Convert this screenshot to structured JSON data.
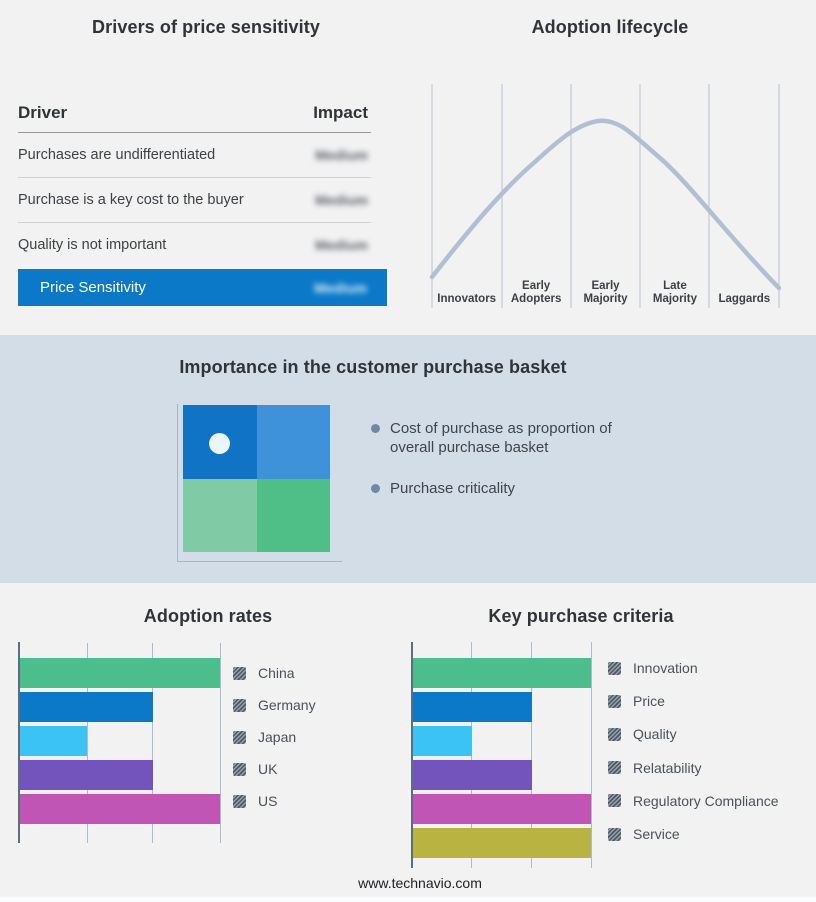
{
  "colors": {
    "accent_blue": "#0b79c8",
    "band_bg": "#d3dde8",
    "page_bg": "#f2f2f3",
    "curve": "#b1bfd3",
    "curve_grid": "#b7c3d3"
  },
  "basket": {
    "title": "Importance in the customer purchase basket",
    "bullets": [
      "Cost of purchase as proportion of overall purchase basket",
      "Purchase criticality"
    ],
    "quadrant_colors": {
      "top_left": "#1173c5",
      "top_right": "#3e92da",
      "bottom_left": "#80cba6",
      "bottom_right": "#50be87"
    }
  },
  "footer": {
    "url": "www.technavio.com"
  },
  "chart_data": [
    {
      "type": "table",
      "title": "Drivers of price sensitivity",
      "columns": [
        "Driver",
        "Impact"
      ],
      "rows": [
        [
          "Purchases are undifferentiated",
          "Medium"
        ],
        [
          "Purchase is a key cost to the buyer",
          "Medium"
        ],
        [
          "Quality is not important",
          "Medium"
        ],
        [
          "Price Sensitivity",
          "Medium"
        ]
      ],
      "note": "Impact values rendered blurred; final row highlighted in blue"
    },
    {
      "type": "line",
      "title": "Adoption lifecycle",
      "categories": [
        "Innovators",
        "Early Adopters",
        "Early Majority",
        "Late Majority",
        "Laggards"
      ],
      "description": "Bell-shaped adoption curve peaking over the Early Majority segment",
      "line_color": "#b1bfd3",
      "grid": "vertical category dividers, no y-axis"
    },
    {
      "type": "bar",
      "title": "Adoption rates",
      "orientation": "horizontal",
      "categories": [
        "China",
        "Germany",
        "Japan",
        "UK",
        "US"
      ],
      "values": [
        3,
        2,
        1,
        2,
        3
      ],
      "xlim": [
        0,
        3
      ],
      "colors": [
        "#4cbd8d",
        "#0b79c8",
        "#3bc3f5",
        "#7254bc",
        "#c055b5"
      ],
      "legend_position": "right",
      "grid": true
    },
    {
      "type": "bar",
      "title": "Key purchase criteria",
      "orientation": "horizontal",
      "categories": [
        "Innovation",
        "Price",
        "Quality",
        "Relatability",
        "Regulatory Compliance",
        "Service"
      ],
      "values": [
        3,
        2,
        1,
        2,
        3,
        3
      ],
      "xlim": [
        0,
        3
      ],
      "colors": [
        "#4cbd8d",
        "#0b79c8",
        "#3bc3f5",
        "#7254bc",
        "#c055b5",
        "#b9b442"
      ],
      "legend_position": "right",
      "grid": true
    }
  ]
}
